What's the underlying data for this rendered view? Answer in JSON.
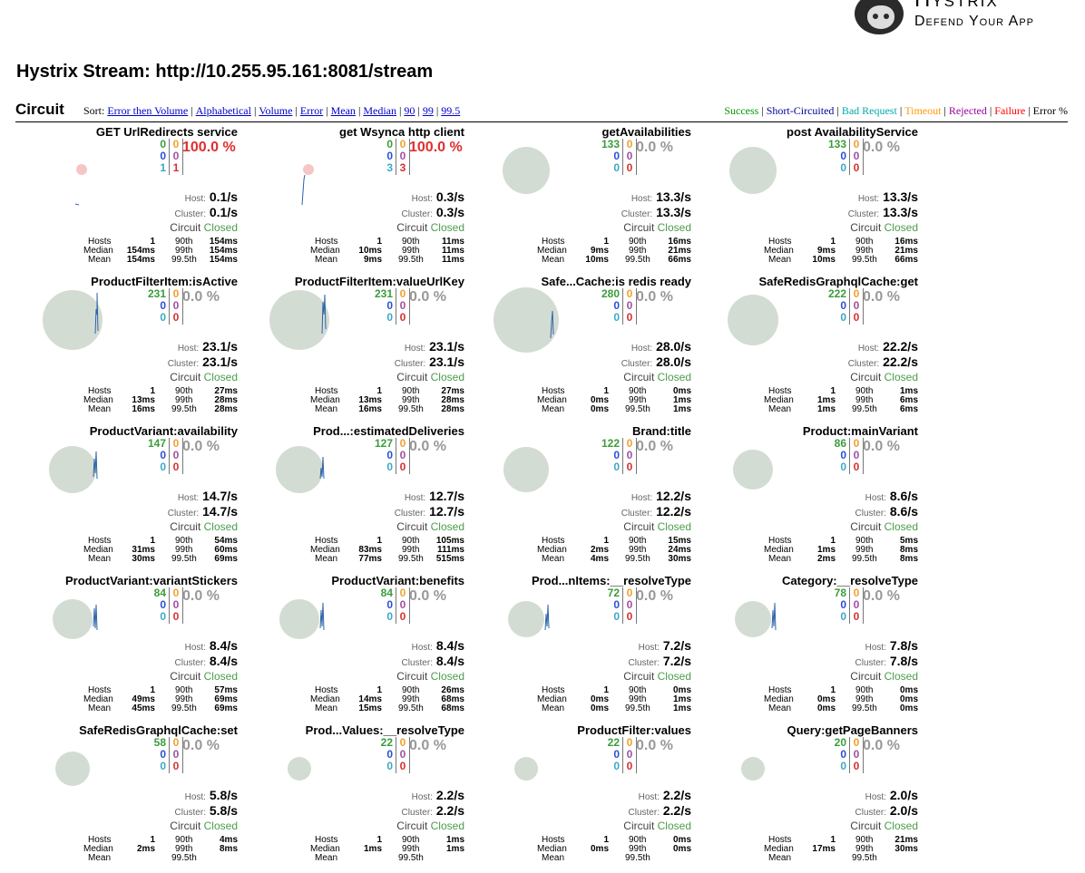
{
  "logo": {
    "title": "Hystrix",
    "subtitle": "Defend Your App"
  },
  "stream_title": "Hystrix Stream: http://10.255.95.161:8081/stream",
  "circuit_label": "Circuit",
  "sort": {
    "label": "Sort:",
    "links": [
      "Error then Volume",
      "Alphabetical",
      "Volume",
      "Error",
      "Mean",
      "Median",
      "90",
      "99",
      "99.5"
    ]
  },
  "legend": {
    "success": "Success",
    "short": "Short-Circuited",
    "bad": "Bad Request",
    "timeout": "Timeout",
    "rejected": "Rejected",
    "failure": "Failure",
    "error": "Error %"
  },
  "labels": {
    "host": "Host:",
    "cluster": "Cluster:",
    "circuit": "Circuit",
    "closed": "Closed",
    "hosts": "Hosts",
    "median": "Median",
    "mean": "Mean",
    "p90": "90th",
    "p99": "99th",
    "p995": "99.5th"
  },
  "colors": {
    "bubble_ok": "#d3dcd3",
    "bubble_err": "#f6c6c6",
    "spark": "#2e63a8"
  },
  "cards": [
    {
      "name": "GET UrlRedirects service",
      "succ": "0",
      "short": "0",
      "bad": "1",
      "to": "0",
      "rej": "0",
      "fail": "1",
      "pct": "100.0 %",
      "host": "0.1/s",
      "cluster": "0.1/s",
      "hosts": "1",
      "median": "154ms",
      "mean": "154ms",
      "p90": "154ms",
      "p99": "154ms",
      "p995": "154ms"
    },
    {
      "name": "get Wsynca http client",
      "succ": "0",
      "short": "0",
      "bad": "3",
      "to": "0",
      "rej": "0",
      "fail": "3",
      "pct": "100.0 %",
      "host": "0.3/s",
      "cluster": "0.3/s",
      "hosts": "1",
      "median": "10ms",
      "mean": "9ms",
      "p90": "11ms",
      "p99": "11ms",
      "p995": "11ms"
    },
    {
      "name": "getAvailabilities",
      "succ": "133",
      "short": "0",
      "bad": "0",
      "to": "0",
      "rej": "0",
      "fail": "0",
      "pct": "0.0 %",
      "host": "13.3/s",
      "cluster": "13.3/s",
      "hosts": "1",
      "median": "9ms",
      "mean": "10ms",
      "p90": "16ms",
      "p99": "21ms",
      "p995": "66ms"
    },
    {
      "name": "post AvailabilityService",
      "succ": "133",
      "short": "0",
      "bad": "0",
      "to": "0",
      "rej": "0",
      "fail": "0",
      "pct": "0.0 %",
      "host": "13.3/s",
      "cluster": "13.3/s",
      "hosts": "1",
      "median": "9ms",
      "mean": "10ms",
      "p90": "16ms",
      "p99": "21ms",
      "p995": "66ms"
    },
    {
      "name": "ProductFilterItem:isActive",
      "succ": "231",
      "short": "0",
      "bad": "0",
      "to": "0",
      "rej": "0",
      "fail": "0",
      "pct": "0.0 %",
      "host": "23.1/s",
      "cluster": "23.1/s",
      "hosts": "1",
      "median": "13ms",
      "mean": "16ms",
      "p90": "27ms",
      "p99": "28ms",
      "p995": "28ms"
    },
    {
      "name": "ProductFilterItem:valueUrlKey",
      "succ": "231",
      "short": "0",
      "bad": "0",
      "to": "0",
      "rej": "0",
      "fail": "0",
      "pct": "0.0 %",
      "host": "23.1/s",
      "cluster": "23.1/s",
      "hosts": "1",
      "median": "13ms",
      "mean": "16ms",
      "p90": "27ms",
      "p99": "28ms",
      "p995": "28ms"
    },
    {
      "name": "Safe...Cache:is redis ready",
      "succ": "280",
      "short": "0",
      "bad": "0",
      "to": "0",
      "rej": "0",
      "fail": "0",
      "pct": "0.0 %",
      "host": "28.0/s",
      "cluster": "28.0/s",
      "hosts": "1",
      "median": "0ms",
      "mean": "0ms",
      "p90": "0ms",
      "p99": "1ms",
      "p995": "1ms"
    },
    {
      "name": "SafeRedisGraphqlCache:get",
      "succ": "222",
      "short": "0",
      "bad": "0",
      "to": "0",
      "rej": "0",
      "fail": "0",
      "pct": "0.0 %",
      "host": "22.2/s",
      "cluster": "22.2/s",
      "hosts": "1",
      "median": "1ms",
      "mean": "1ms",
      "p90": "1ms",
      "p99": "6ms",
      "p995": "6ms"
    },
    {
      "name": "ProductVariant:availability",
      "succ": "147",
      "short": "0",
      "bad": "0",
      "to": "0",
      "rej": "0",
      "fail": "0",
      "pct": "0.0 %",
      "host": "14.7/s",
      "cluster": "14.7/s",
      "hosts": "1",
      "median": "31ms",
      "mean": "30ms",
      "p90": "54ms",
      "p99": "60ms",
      "p995": "69ms"
    },
    {
      "name": "Prod...:estimatedDeliveries",
      "succ": "127",
      "short": "0",
      "bad": "0",
      "to": "0",
      "rej": "0",
      "fail": "0",
      "pct": "0.0 %",
      "host": "12.7/s",
      "cluster": "12.7/s",
      "hosts": "1",
      "median": "83ms",
      "mean": "77ms",
      "p90": "105ms",
      "p99": "111ms",
      "p995": "515ms"
    },
    {
      "name": "Brand:title",
      "succ": "122",
      "short": "0",
      "bad": "0",
      "to": "0",
      "rej": "0",
      "fail": "0",
      "pct": "0.0 %",
      "host": "12.2/s",
      "cluster": "12.2/s",
      "hosts": "1",
      "median": "2ms",
      "mean": "4ms",
      "p90": "15ms",
      "p99": "24ms",
      "p995": "30ms"
    },
    {
      "name": "Product:mainVariant",
      "succ": "86",
      "short": "0",
      "bad": "0",
      "to": "0",
      "rej": "0",
      "fail": "0",
      "pct": "0.0 %",
      "host": "8.6/s",
      "cluster": "8.6/s",
      "hosts": "1",
      "median": "1ms",
      "mean": "2ms",
      "p90": "5ms",
      "p99": "8ms",
      "p995": "8ms"
    },
    {
      "name": "ProductVariant:variantStickers",
      "succ": "84",
      "short": "0",
      "bad": "0",
      "to": "0",
      "rej": "0",
      "fail": "0",
      "pct": "0.0 %",
      "host": "8.4/s",
      "cluster": "8.4/s",
      "hosts": "1",
      "median": "49ms",
      "mean": "45ms",
      "p90": "57ms",
      "p99": "69ms",
      "p995": "69ms"
    },
    {
      "name": "ProductVariant:benefits",
      "succ": "84",
      "short": "0",
      "bad": "0",
      "to": "0",
      "rej": "0",
      "fail": "0",
      "pct": "0.0 %",
      "host": "8.4/s",
      "cluster": "8.4/s",
      "hosts": "1",
      "median": "14ms",
      "mean": "15ms",
      "p90": "26ms",
      "p99": "68ms",
      "p995": "68ms"
    },
    {
      "name": "Prod...nItems:__resolveType",
      "succ": "72",
      "short": "0",
      "bad": "0",
      "to": "0",
      "rej": "0",
      "fail": "0",
      "pct": "0.0 %",
      "host": "7.2/s",
      "cluster": "7.2/s",
      "hosts": "1",
      "median": "0ms",
      "mean": "0ms",
      "p90": "0ms",
      "p99": "1ms",
      "p995": "1ms"
    },
    {
      "name": "Category:__resolveType",
      "succ": "78",
      "short": "0",
      "bad": "0",
      "to": "0",
      "rej": "0",
      "fail": "0",
      "pct": "0.0 %",
      "host": "7.8/s",
      "cluster": "7.8/s",
      "hosts": "1",
      "median": "0ms",
      "mean": "0ms",
      "p90": "0ms",
      "p99": "0ms",
      "p995": "0ms"
    },
    {
      "name": "SafeRedisGraphqlCache:set",
      "succ": "58",
      "short": "0",
      "bad": "0",
      "to": "0",
      "rej": "0",
      "fail": "0",
      "pct": "0.0 %",
      "host": "5.8/s",
      "cluster": "5.8/s",
      "hosts": "1",
      "median": "2ms",
      "mean": "",
      "p90": "4ms",
      "p99": "8ms",
      "p995": ""
    },
    {
      "name": "Prod...Values:__resolveType",
      "succ": "22",
      "short": "0",
      "bad": "0",
      "to": "0",
      "rej": "0",
      "fail": "0",
      "pct": "0.0 %",
      "host": "2.2/s",
      "cluster": "2.2/s",
      "hosts": "1",
      "median": "1ms",
      "mean": "",
      "p90": "1ms",
      "p99": "1ms",
      "p995": ""
    },
    {
      "name": "ProductFilter:values",
      "succ": "22",
      "short": "0",
      "bad": "0",
      "to": "0",
      "rej": "0",
      "fail": "0",
      "pct": "0.0 %",
      "host": "2.2/s",
      "cluster": "2.2/s",
      "hosts": "1",
      "median": "0ms",
      "mean": "",
      "p90": "0ms",
      "p99": "0ms",
      "p995": ""
    },
    {
      "name": "Query:getPageBanners",
      "succ": "20",
      "short": "0",
      "bad": "0",
      "to": "0",
      "rej": "0",
      "fail": "0",
      "pct": "0.0 %",
      "host": "2.0/s",
      "cluster": "2.0/s",
      "hosts": "1",
      "median": "17ms",
      "mean": "",
      "p90": "21ms",
      "p99": "30ms",
      "p995": ""
    }
  ]
}
